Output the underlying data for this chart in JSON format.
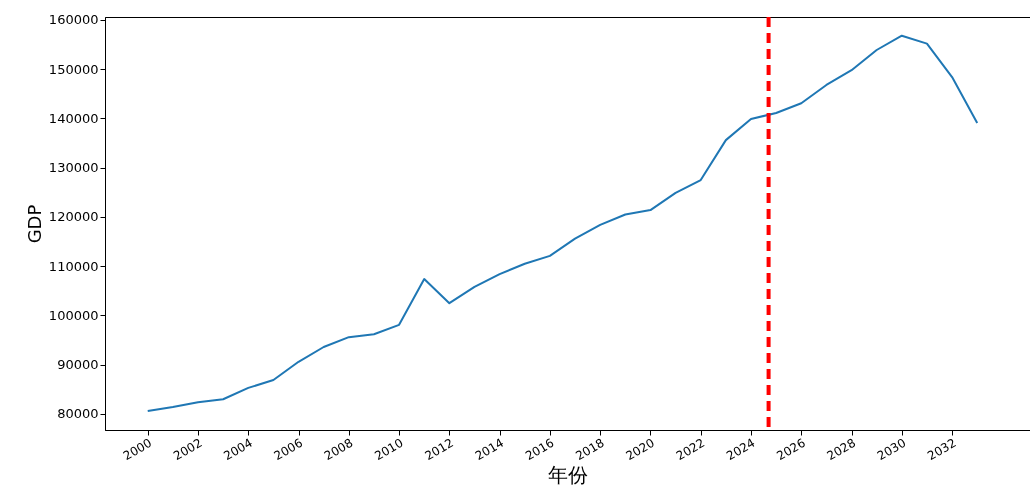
{
  "chart_data": {
    "type": "line",
    "xlabel": "年份",
    "ylabel": "GDP",
    "x": [
      2000,
      2001,
      2002,
      2003,
      2004,
      2005,
      2006,
      2007,
      2008,
      2009,
      2010,
      2011,
      2012,
      2013,
      2014,
      2015,
      2016,
      2017,
      2018,
      2019,
      2020,
      2021,
      2022,
      2023,
      2024,
      2025,
      2026,
      2027,
      2028,
      2029,
      2030,
      2031,
      2032,
      2033
    ],
    "series": [
      {
        "color": "#1f77b4",
        "values": [
          80600,
          81400,
          82400,
          83000,
          85300,
          86900,
          90600,
          93600,
          95600,
          96200,
          98100,
          107400,
          102500,
          105800,
          108400,
          110500,
          112100,
          115600,
          118400,
          120500,
          121400,
          124900,
          127500,
          135600,
          139900,
          141100,
          143100,
          146800,
          149800,
          153900,
          156800,
          155200,
          148400,
          139100
        ]
      }
    ],
    "xlim": [
      1998.3,
      2035.1
    ],
    "ylim": [
      76750,
      160600
    ],
    "xticks": [
      2000,
      2002,
      2004,
      2006,
      2008,
      2010,
      2012,
      2014,
      2016,
      2018,
      2020,
      2022,
      2024,
      2026,
      2028,
      2030,
      2032
    ],
    "yticks": [
      80000,
      90000,
      100000,
      110000,
      120000,
      130000,
      140000,
      150000,
      160000
    ],
    "ref_lines": [
      {
        "axis": "x",
        "value": 2024.7,
        "color": "#ff0000",
        "line_style": "dashed"
      }
    ],
    "grid": false
  }
}
